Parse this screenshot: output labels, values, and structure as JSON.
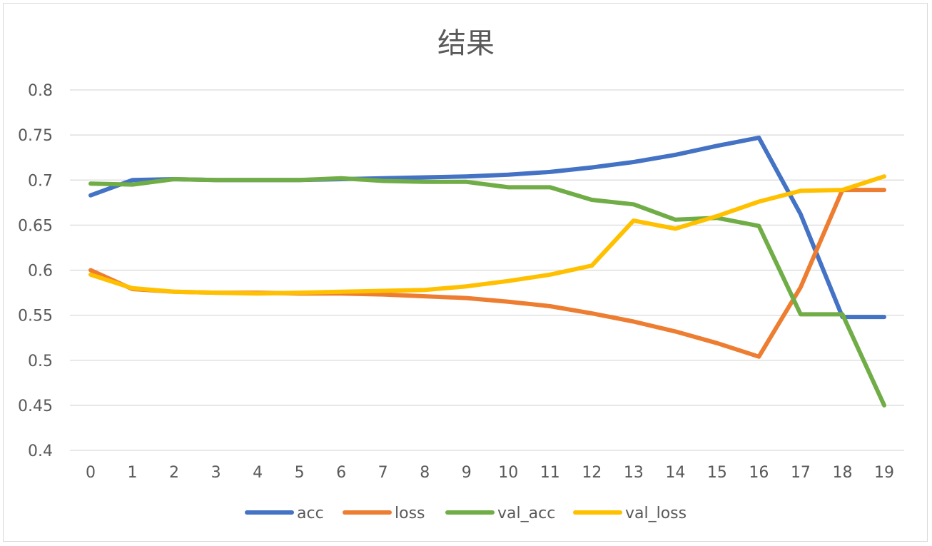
{
  "chart_data": {
    "type": "line",
    "title": "结果",
    "xlabel": "",
    "ylabel": "",
    "categories": [
      "0",
      "1",
      "2",
      "3",
      "4",
      "5",
      "6",
      "7",
      "8",
      "9",
      "10",
      "11",
      "12",
      "13",
      "14",
      "15",
      "16",
      "17",
      "18",
      "19"
    ],
    "ylim": [
      0.4,
      0.8
    ],
    "yticks": [
      "0.4",
      "0.45",
      "0.5",
      "0.55",
      "0.6",
      "0.65",
      "0.7",
      "0.75",
      "0.8"
    ],
    "grid": true,
    "legend_position": "bottom",
    "series": [
      {
        "name": "acc",
        "color": "#4472C4",
        "values": [
          0.683,
          0.7,
          0.701,
          0.7,
          0.7,
          0.7,
          0.701,
          0.702,
          0.703,
          0.704,
          0.706,
          0.709,
          0.714,
          0.72,
          0.728,
          0.738,
          0.747,
          0.662,
          0.548,
          0.548
        ]
      },
      {
        "name": "loss",
        "color": "#ED7D31",
        "values": [
          0.6,
          0.579,
          0.576,
          0.575,
          0.575,
          0.574,
          0.574,
          0.573,
          0.571,
          0.569,
          0.565,
          0.56,
          0.552,
          0.543,
          0.532,
          0.519,
          0.504,
          0.581,
          0.689,
          0.689
        ]
      },
      {
        "name": "val_acc",
        "color": "#70AD47",
        "values": [
          0.696,
          0.695,
          0.701,
          0.7,
          0.7,
          0.7,
          0.702,
          0.699,
          0.698,
          0.698,
          0.692,
          0.692,
          0.678,
          0.673,
          0.656,
          0.658,
          0.649,
          0.551,
          0.551,
          0.45
        ]
      },
      {
        "name": "val_loss",
        "color": "#FFC000",
        "values": [
          0.595,
          0.58,
          0.576,
          0.575,
          0.574,
          0.575,
          0.576,
          0.577,
          0.578,
          0.582,
          0.588,
          0.595,
          0.605,
          0.655,
          0.646,
          0.66,
          0.676,
          0.688,
          0.689,
          0.704
        ]
      }
    ]
  }
}
